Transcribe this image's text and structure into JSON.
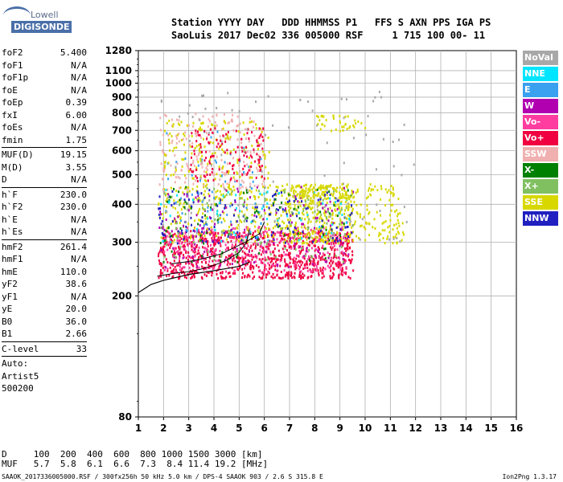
{
  "logo": {
    "line1": "Lowell",
    "line2": "DIGISONDE"
  },
  "header": {
    "line1": "Station YYYY DAY   DDD HHMMSS P1   FFS S AXN PPS IGA PS",
    "line2": "SaoLuis 2017 Dec02 336 005000 RSF     1 715 100 00- 11"
  },
  "params": {
    "group1": [
      {
        "k": "foF2",
        "v": "5.400"
      },
      {
        "k": "foF1",
        "v": "N/A"
      },
      {
        "k": "foF1p",
        "v": "N/A"
      },
      {
        "k": "foE",
        "v": "N/A"
      },
      {
        "k": "foEp",
        "v": "0.39"
      },
      {
        "k": "fxI",
        "v": "6.00"
      },
      {
        "k": "foEs",
        "v": "N/A"
      },
      {
        "k": "fmin",
        "v": "1.75"
      }
    ],
    "group2": [
      {
        "k": "MUF(D)",
        "v": "19.15"
      },
      {
        "k": "M(D)",
        "v": "3.55"
      },
      {
        "k": "D",
        "v": "N/A"
      }
    ],
    "group3": [
      {
        "k": "h`F",
        "v": "230.0"
      },
      {
        "k": "h`F2",
        "v": "230.0"
      },
      {
        "k": "h`E",
        "v": "N/A"
      },
      {
        "k": "h`Es",
        "v": "N/A"
      }
    ],
    "group4": [
      {
        "k": "hmF2",
        "v": "261.4"
      },
      {
        "k": "hmF1",
        "v": "N/A"
      },
      {
        "k": "hmE",
        "v": "110.0"
      },
      {
        "k": "yF2",
        "v": "38.6"
      },
      {
        "k": "yF1",
        "v": "N/A"
      },
      {
        "k": "yE",
        "v": "20.0"
      },
      {
        "k": "B0",
        "v": "36.0"
      },
      {
        "k": "B1",
        "v": "2.66"
      }
    ],
    "group5": [
      {
        "k": "C-level",
        "v": "33"
      }
    ],
    "auto": [
      "Auto:",
      "Artist5",
      "500200"
    ]
  },
  "legend": [
    {
      "label": "NoVal",
      "color": "#a8a8a8"
    },
    {
      "label": "NNE",
      "color": "#00e5ff"
    },
    {
      "label": "E",
      "color": "#3aa0f0"
    },
    {
      "label": "W",
      "color": "#b000b0"
    },
    {
      "label": "Vo-",
      "color": "#ff3ca0"
    },
    {
      "label": "Vo+",
      "color": "#f00040"
    },
    {
      "label": "SSW",
      "color": "#f0b0b0"
    },
    {
      "label": "X-",
      "color": "#008000"
    },
    {
      "label": "X+",
      "color": "#80c060"
    },
    {
      "label": "SSE",
      "color": "#d8d800"
    },
    {
      "label": "NNW",
      "color": "#2020c0"
    }
  ],
  "dmuf": {
    "line1": "D     100  200  400  600  800 1000 1500 3000 [km]",
    "line2": "MUF   5.7  5.8  6.1  6.6  7.3  8.4 11.4 19.2 [MHz]"
  },
  "footer": "SAAOK_2017336005000.RSF / 300fx256h 50 kHz 5.0 km / DPS-4 SAAOK 903 / 2.6 S 315.8 E",
  "version": "Ion2Png 1.3.17",
  "chart_data": {
    "type": "scatter",
    "x_ticks": [
      1,
      2,
      3,
      4,
      5,
      6,
      7,
      8,
      9,
      10,
      11,
      12,
      13,
      14,
      15,
      16
    ],
    "y_ticks": [
      80,
      200,
      300,
      400,
      500,
      600,
      700,
      800,
      900,
      1000,
      1100,
      1280
    ],
    "xlim": [
      1,
      16
    ],
    "ylim": [
      80,
      1280
    ],
    "y_scale": "log",
    "grid": true,
    "traced_profile": [
      [
        1.0,
        205
      ],
      [
        1.5,
        218
      ],
      [
        2.0,
        225
      ],
      [
        3.0,
        235
      ],
      [
        4.0,
        242
      ],
      [
        5.0,
        250
      ],
      [
        5.4,
        258
      ]
    ],
    "traces": [
      {
        "name": "o-trace",
        "x": [
          1.75,
          2.0,
          2.5,
          3.0,
          3.5,
          4.0,
          4.5,
          5.0,
          5.3,
          5.4
        ],
        "y": [
          232,
          234,
          238,
          240,
          245,
          252,
          262,
          278,
          300,
          330
        ]
      },
      {
        "name": "x-trace",
        "x": [
          2.3,
          2.8,
          3.3,
          3.8,
          4.3,
          4.8,
          5.3,
          5.8,
          6.0
        ],
        "y": [
          255,
          258,
          262,
          268,
          275,
          288,
          302,
          320,
          350
        ]
      }
    ],
    "echo_regions": [
      {
        "color": "#f00040",
        "x": [
          1.75,
          9.5
        ],
        "y": [
          230,
          330
        ],
        "n": 900
      },
      {
        "color": "#ff3ca0",
        "x": [
          2.0,
          9.3
        ],
        "y": [
          240,
          340
        ],
        "n": 300
      },
      {
        "color": "#d8d800",
        "x": [
          1.75,
          11.5
        ],
        "y": [
          300,
          470
        ],
        "n": 500
      },
      {
        "color": "#d8d800",
        "x": [
          6.8,
          9.5
        ],
        "y": [
          300,
          460
        ],
        "n": 200
      },
      {
        "color": "#2020c0",
        "x": [
          1.75,
          9.5
        ],
        "y": [
          300,
          450
        ],
        "n": 150
      },
      {
        "color": "#b000b0",
        "x": [
          1.8,
          9.5
        ],
        "y": [
          250,
          460
        ],
        "n": 150
      },
      {
        "color": "#80c060",
        "x": [
          1.8,
          9.5
        ],
        "y": [
          260,
          460
        ],
        "n": 120
      },
      {
        "color": "#008000",
        "x": [
          1.8,
          9.5
        ],
        "y": [
          260,
          460
        ],
        "n": 80
      },
      {
        "color": "#00e5ff",
        "x": [
          1.8,
          9.5
        ],
        "y": [
          300,
          450
        ],
        "n": 60
      },
      {
        "color": "#3aa0f0",
        "x": [
          2.0,
          6.0
        ],
        "y": [
          320,
          700
        ],
        "n": 60
      },
      {
        "color": "#f0b0b0",
        "x": [
          1.8,
          6.0
        ],
        "y": [
          450,
          800
        ],
        "n": 200
      },
      {
        "color": "#d8d800",
        "x": [
          2.0,
          6.2
        ],
        "y": [
          480,
          760
        ],
        "n": 150
      },
      {
        "color": "#f00040",
        "x": [
          3.0,
          6.0
        ],
        "y": [
          480,
          720
        ],
        "n": 120
      },
      {
        "color": "#a8a8a8",
        "x": [
          1.8,
          12.0
        ],
        "y": [
          300,
          950
        ],
        "n": 100
      },
      {
        "color": "#d8d800",
        "x": [
          8.0,
          10.0
        ],
        "y": [
          700,
          790
        ],
        "n": 40
      },
      {
        "color": "#d8d800",
        "x": [
          7.0,
          9.5
        ],
        "y": [
          420,
          470
        ],
        "n": 80
      }
    ]
  }
}
